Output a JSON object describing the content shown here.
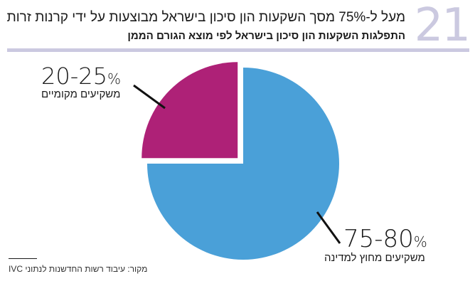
{
  "figure_number": "21",
  "chart_data": {
    "type": "pie",
    "title": "מעל ל-75% מסך השקעות הון סיכון בישראל מבוצעות על ידי קרנות זרות",
    "subtitle": "התפלגות השקעות הון סיכון בישראל לפי מוצא הגורם הממן",
    "slices": [
      {
        "name": "משקיעים מקומיים",
        "range_label": "20-25",
        "percent_sign": "%",
        "value": 25,
        "color": "#ae2177",
        "exploded": true
      },
      {
        "name": "משקיעים מחוץ למדינה",
        "range_label": "75-80",
        "percent_sign": "%",
        "value": 75,
        "color": "#4aa0d8",
        "exploded": false
      }
    ],
    "source": "מקור: עיבוד רשות החדשנות לנתוני IVC"
  }
}
